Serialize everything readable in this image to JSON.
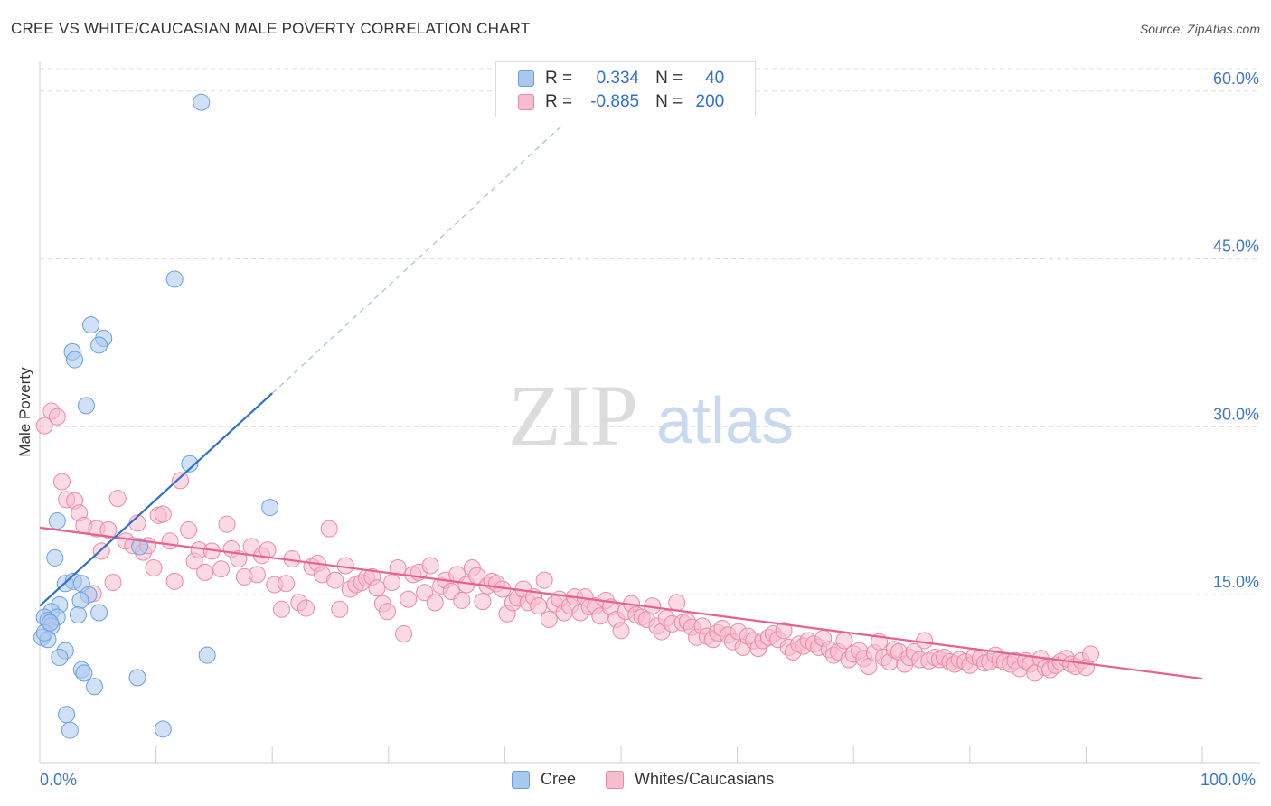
{
  "header": {
    "title": "CREE VS WHITE/CAUCASIAN MALE POVERTY CORRELATION CHART",
    "source": "Source: ZipAtlas.com"
  },
  "legend": {
    "r_label": "R =",
    "n_label": "N =",
    "rows": [
      {
        "r": "0.334",
        "n": "40",
        "fill": "#a9c9f0",
        "stroke": "#6a9fdd"
      },
      {
        "r": "-0.885",
        "n": "200",
        "fill": "#f7bccd",
        "stroke": "#e98aa5"
      }
    ]
  },
  "bottom_legend": [
    {
      "label": "Cree",
      "fill": "#a9c9f0",
      "stroke": "#6a9fdd"
    },
    {
      "label": "Whites/Caucasians",
      "fill": "#f7bccd",
      "stroke": "#e98aa5"
    }
  ],
  "watermark": {
    "zip": "ZIP",
    "atlas": "atlas"
  },
  "chart_data": {
    "type": "scatter",
    "title": "CREE VS WHITE/CAUCASIAN MALE POVERTY CORRELATION CHART",
    "xlabel": "",
    "ylabel": "Male Poverty",
    "xlim": [
      0,
      100
    ],
    "ylim": [
      0,
      62
    ],
    "x_tick_labels": [
      "0.0%",
      "100.0%"
    ],
    "y_ticks": [
      15,
      30,
      45,
      60
    ],
    "y_tick_labels": [
      "15.0%",
      "30.0%",
      "45.0%",
      "60.0%"
    ],
    "legend_position": "top-center",
    "colors": {
      "cree": "#2f6fd0",
      "white": "#e8608b",
      "cree_fill": "#a9c9f0",
      "white_fill": "#f7bccd"
    },
    "series": [
      {
        "name": "Cree",
        "r": 0.334,
        "n": 40,
        "trend": {
          "x0": 0,
          "y0": 14.0,
          "x1": 20,
          "y1": 33.0,
          "dash_to_x": 45,
          "dash_to_y": 57.0
        },
        "points": [
          [
            13.9,
            59.0
          ],
          [
            11.6,
            43.2
          ],
          [
            4.4,
            39.1
          ],
          [
            5.5,
            37.9
          ],
          [
            2.8,
            36.7
          ],
          [
            5.1,
            37.3
          ],
          [
            3.0,
            36.0
          ],
          [
            4.0,
            31.9
          ],
          [
            12.9,
            26.7
          ],
          [
            1.5,
            21.6
          ],
          [
            1.3,
            18.3
          ],
          [
            2.2,
            16.0
          ],
          [
            2.9,
            16.2
          ],
          [
            3.6,
            16.0
          ],
          [
            4.2,
            15.0
          ],
          [
            3.5,
            14.5
          ],
          [
            1.7,
            14.1
          ],
          [
            1.0,
            13.5
          ],
          [
            1.5,
            13.0
          ],
          [
            0.4,
            13.0
          ],
          [
            0.7,
            12.7
          ],
          [
            1.0,
            12.2
          ],
          [
            5.1,
            13.4
          ],
          [
            3.3,
            13.2
          ],
          [
            0.2,
            11.2
          ],
          [
            0.7,
            11.0
          ],
          [
            0.4,
            11.6
          ],
          [
            2.2,
            10.0
          ],
          [
            1.7,
            9.4
          ],
          [
            3.6,
            8.3
          ],
          [
            3.8,
            8.0
          ],
          [
            8.4,
            7.6
          ],
          [
            14.4,
            9.6
          ],
          [
            4.7,
            6.8
          ],
          [
            2.3,
            4.3
          ],
          [
            2.6,
            2.9
          ],
          [
            10.6,
            3.0
          ],
          [
            19.8,
            22.8
          ],
          [
            8.6,
            19.3
          ],
          [
            0.9,
            12.5
          ]
        ]
      },
      {
        "name": "Whites/Caucasians",
        "r": -0.885,
        "n": 200,
        "trend": {
          "x0": 0,
          "y0": 21.0,
          "x1": 100,
          "y1": 7.5
        },
        "points": [
          [
            0.4,
            30.1
          ],
          [
            1.0,
            31.4
          ],
          [
            1.5,
            30.9
          ],
          [
            1.9,
            25.1
          ],
          [
            2.3,
            23.5
          ],
          [
            3.0,
            23.4
          ],
          [
            3.4,
            22.3
          ],
          [
            3.8,
            21.2
          ],
          [
            4.6,
            15.1
          ],
          [
            4.9,
            20.9
          ],
          [
            5.3,
            18.9
          ],
          [
            5.9,
            20.8
          ],
          [
            6.3,
            16.1
          ],
          [
            6.7,
            23.6
          ],
          [
            7.4,
            19.8
          ],
          [
            8.0,
            19.4
          ],
          [
            8.4,
            21.4
          ],
          [
            8.9,
            18.8
          ],
          [
            9.3,
            19.4
          ],
          [
            9.8,
            17.4
          ],
          [
            10.2,
            22.1
          ],
          [
            10.6,
            22.2
          ],
          [
            11.2,
            19.8
          ],
          [
            11.6,
            16.2
          ],
          [
            12.1,
            25.2
          ],
          [
            12.8,
            20.8
          ],
          [
            13.3,
            18.0
          ],
          [
            13.7,
            19.0
          ],
          [
            14.2,
            17.0
          ],
          [
            14.8,
            18.9
          ],
          [
            15.6,
            17.3
          ],
          [
            16.1,
            21.3
          ],
          [
            16.5,
            19.1
          ],
          [
            17.1,
            18.2
          ],
          [
            17.6,
            16.6
          ],
          [
            18.2,
            19.3
          ],
          [
            18.7,
            16.8
          ],
          [
            19.1,
            18.5
          ],
          [
            19.6,
            19.0
          ],
          [
            20.2,
            15.9
          ],
          [
            20.8,
            13.7
          ],
          [
            21.2,
            16.0
          ],
          [
            21.7,
            18.2
          ],
          [
            22.3,
            14.3
          ],
          [
            22.9,
            13.8
          ],
          [
            23.4,
            17.5
          ],
          [
            23.9,
            17.8
          ],
          [
            24.3,
            16.8
          ],
          [
            24.9,
            20.9
          ],
          [
            25.4,
            16.3
          ],
          [
            25.8,
            13.7
          ],
          [
            26.3,
            17.6
          ],
          [
            26.7,
            15.5
          ],
          [
            27.2,
            15.9
          ],
          [
            27.7,
            16.1
          ],
          [
            28.1,
            16.5
          ],
          [
            28.6,
            16.6
          ],
          [
            29.0,
            15.6
          ],
          [
            29.5,
            14.2
          ],
          [
            29.9,
            13.5
          ],
          [
            30.3,
            16.1
          ],
          [
            30.8,
            17.4
          ],
          [
            31.3,
            11.5
          ],
          [
            31.7,
            14.6
          ],
          [
            32.1,
            16.8
          ],
          [
            32.6,
            17.0
          ],
          [
            33.1,
            15.2
          ],
          [
            33.6,
            17.6
          ],
          [
            34.0,
            14.3
          ],
          [
            34.5,
            15.8
          ],
          [
            34.9,
            16.3
          ],
          [
            35.4,
            15.3
          ],
          [
            35.9,
            16.8
          ],
          [
            36.3,
            14.5
          ],
          [
            36.7,
            15.9
          ],
          [
            37.2,
            17.4
          ],
          [
            37.6,
            16.7
          ],
          [
            38.1,
            14.4
          ],
          [
            38.5,
            15.8
          ],
          [
            38.9,
            16.2
          ],
          [
            39.3,
            16.0
          ],
          [
            39.8,
            15.5
          ],
          [
            40.2,
            13.3
          ],
          [
            40.7,
            14.3
          ],
          [
            41.1,
            14.7
          ],
          [
            41.6,
            15.5
          ],
          [
            42.0,
            14.3
          ],
          [
            42.5,
            14.8
          ],
          [
            42.9,
            14.0
          ],
          [
            43.4,
            16.3
          ],
          [
            43.8,
            12.8
          ],
          [
            44.3,
            14.2
          ],
          [
            44.7,
            14.6
          ],
          [
            45.1,
            13.4
          ],
          [
            45.6,
            14.0
          ],
          [
            46.0,
            14.8
          ],
          [
            46.5,
            13.4
          ],
          [
            46.9,
            14.8
          ],
          [
            47.3,
            13.9
          ],
          [
            47.8,
            14.0
          ],
          [
            48.2,
            13.1
          ],
          [
            48.7,
            14.5
          ],
          [
            49.1,
            13.9
          ],
          [
            49.6,
            12.8
          ],
          [
            50.0,
            11.8
          ],
          [
            50.4,
            13.5
          ],
          [
            50.9,
            14.2
          ],
          [
            51.3,
            13.2
          ],
          [
            51.8,
            13.0
          ],
          [
            52.2,
            12.8
          ],
          [
            52.7,
            14.0
          ],
          [
            53.1,
            12.2
          ],
          [
            53.5,
            11.7
          ],
          [
            53.9,
            12.9
          ],
          [
            54.4,
            12.4
          ],
          [
            54.8,
            14.3
          ],
          [
            55.3,
            12.5
          ],
          [
            55.7,
            12.6
          ],
          [
            56.1,
            12.1
          ],
          [
            56.5,
            11.2
          ],
          [
            57.0,
            12.2
          ],
          [
            57.4,
            11.3
          ],
          [
            57.9,
            11.0
          ],
          [
            58.3,
            11.6
          ],
          [
            58.7,
            12.0
          ],
          [
            59.2,
            11.4
          ],
          [
            59.6,
            10.8
          ],
          [
            60.1,
            11.7
          ],
          [
            60.5,
            10.3
          ],
          [
            60.9,
            11.3
          ],
          [
            61.4,
            10.9
          ],
          [
            61.8,
            10.2
          ],
          [
            62.2,
            10.9
          ],
          [
            62.7,
            11.2
          ],
          [
            63.1,
            11.5
          ],
          [
            63.5,
            11.0
          ],
          [
            64.0,
            11.8
          ],
          [
            64.4,
            10.3
          ],
          [
            64.8,
            9.9
          ],
          [
            65.3,
            10.6
          ],
          [
            65.7,
            10.4
          ],
          [
            66.1,
            10.9
          ],
          [
            66.6,
            10.6
          ],
          [
            67.0,
            10.3
          ],
          [
            67.4,
            11.1
          ],
          [
            67.9,
            10.1
          ],
          [
            68.3,
            9.6
          ],
          [
            68.7,
            9.9
          ],
          [
            69.2,
            10.9
          ],
          [
            69.6,
            9.2
          ],
          [
            70.0,
            9.7
          ],
          [
            70.5,
            10.0
          ],
          [
            70.9,
            9.3
          ],
          [
            71.3,
            8.6
          ],
          [
            71.8,
            9.8
          ],
          [
            72.2,
            10.8
          ],
          [
            72.6,
            9.4
          ],
          [
            73.1,
            9.0
          ],
          [
            73.5,
            10.1
          ],
          [
            73.9,
            9.9
          ],
          [
            74.4,
            8.8
          ],
          [
            74.8,
            9.4
          ],
          [
            75.2,
            9.9
          ],
          [
            75.7,
            9.2
          ],
          [
            76.1,
            10.9
          ],
          [
            76.5,
            9.1
          ],
          [
            77.0,
            9.4
          ],
          [
            77.4,
            9.2
          ],
          [
            77.8,
            9.4
          ],
          [
            78.3,
            9.0
          ],
          [
            78.7,
            8.8
          ],
          [
            79.1,
            9.2
          ],
          [
            79.6,
            9.0
          ],
          [
            80.0,
            8.7
          ],
          [
            80.4,
            9.5
          ],
          [
            80.9,
            9.3
          ],
          [
            81.3,
            8.9
          ],
          [
            81.7,
            9.0
          ],
          [
            82.2,
            9.6
          ],
          [
            82.6,
            9.2
          ],
          [
            83.0,
            9.0
          ],
          [
            83.5,
            8.8
          ],
          [
            83.9,
            9.1
          ],
          [
            84.3,
            8.4
          ],
          [
            84.8,
            9.1
          ],
          [
            85.2,
            8.8
          ],
          [
            85.6,
            8.0
          ],
          [
            86.1,
            9.3
          ],
          [
            86.5,
            8.5
          ],
          [
            86.9,
            8.3
          ],
          [
            87.4,
            8.7
          ],
          [
            87.8,
            9.0
          ],
          [
            88.3,
            9.3
          ],
          [
            88.7,
            8.8
          ],
          [
            89.1,
            8.6
          ],
          [
            89.6,
            9.1
          ],
          [
            90.0,
            8.5
          ],
          [
            90.4,
            9.7
          ]
        ]
      }
    ]
  }
}
